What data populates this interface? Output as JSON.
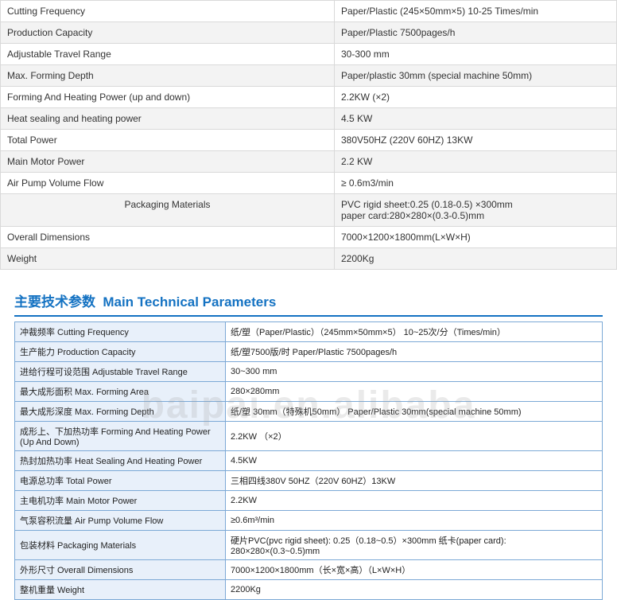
{
  "table1": {
    "rows": [
      {
        "label": "Cutting Frequency",
        "value": "Paper/Plastic (245×50mm×5) 10-25 Times/min"
      },
      {
        "label": "Production Capacity",
        "value": "Paper/Plastic 7500pages/h"
      },
      {
        "label": "Adjustable Travel Range",
        "value": "30-300 mm"
      },
      {
        "label": "Max. Forming Depth",
        "value": "Paper/plastic 30mm (special machine 50mm)"
      },
      {
        "label": "Forming And Heating Power (up and down)",
        "value": "2.2KW (×2)"
      },
      {
        "label": "Heat sealing and heating power",
        "value": "4.5 KW"
      },
      {
        "label": "Total Power",
        "value": "380V50HZ (220V 60HZ) 13KW"
      },
      {
        "label": "Main Motor Power",
        "value": "2.2 KW"
      },
      {
        "label": "Air Pump Volume Flow",
        "value": "≥ 0.6m3/min"
      },
      {
        "label": "Packaging Materials",
        "value": "PVC rigid sheet:0.25 (0.18-0.5) ×300mm\npaper card:280×280×(0.3-0.5)mm",
        "center": true
      },
      {
        "label": "Overall Dimensions",
        "value": "7000×1200×1800mm(L×W×H)"
      },
      {
        "label": "Weight",
        "value": "2200Kg"
      }
    ]
  },
  "title": {
    "cn": "主要技术参数",
    "en": "Main Technical Parameters"
  },
  "watermark": "baipai.en.alibaba",
  "table2": {
    "rows": [
      {
        "label": "冲裁频率 Cutting Frequency",
        "value": "纸/塑（Paper/Plastic）（245mm×50mm×5）  10~25次/分（Times/min）"
      },
      {
        "label": "生产能力 Production Capacity",
        "value": "纸/塑7500版/时   Paper/Plastic 7500pages/h"
      },
      {
        "label": "进给行程可设范围 Adjustable Travel Range",
        "value": "30~300 mm"
      },
      {
        "label": "最大成形面积 Max. Forming Area",
        "value": "280×280mm"
      },
      {
        "label": "最大成形深度 Max. Forming Depth",
        "value": "纸/塑 30mm（特殊机50mm）  Paper/Plastic 30mm(special machine 50mm)"
      },
      {
        "label": "成形上、下加热功率 Forming And Heating Power (Up And Down)",
        "value": "2.2KW （×2）"
      },
      {
        "label": "热封加热功率 Heat Sealing And Heating Power",
        "value": "4.5KW"
      },
      {
        "label": "电源总功率 Total Power",
        "value": "三相四线380V 50HZ（220V 60HZ）13KW"
      },
      {
        "label": "主电机功率 Main Motor Power",
        "value": "2.2KW"
      },
      {
        "label": "气泵容积流量 Air Pump Volume Flow",
        "value": "≥0.6m³/min"
      },
      {
        "label": "包装材料 Packaging Materials",
        "value": "硬片PVC(pvc rigid sheet): 0.25（0.18~0.5）×300mm  纸卡(paper card): 280×280×(0.3~0.5)mm"
      },
      {
        "label": "外形尺寸 Overall Dimensions",
        "value": "7000×1200×1800mm（长×宽×高）（L×W×H）"
      },
      {
        "label": "整机重量 Weight",
        "value": "2200Kg"
      }
    ]
  }
}
